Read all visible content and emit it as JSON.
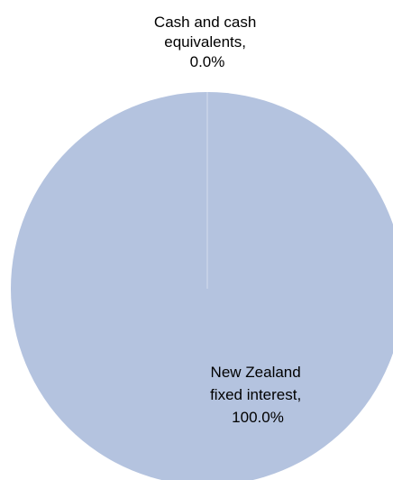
{
  "chart_data": {
    "type": "pie",
    "title": "",
    "slices": [
      {
        "label_lines": [
          "Cash and cash",
          "equivalents,",
          "0.0%"
        ],
        "category": "Cash and cash equivalents",
        "value": 0.0,
        "color": "#b4c3df"
      },
      {
        "label_lines": [
          "New Zealand",
          "fixed interest,",
          "100.0%"
        ],
        "category": "New Zealand fixed interest",
        "value": 100.0,
        "color": "#b4c3df"
      }
    ],
    "unit": "%",
    "legend": "none"
  }
}
